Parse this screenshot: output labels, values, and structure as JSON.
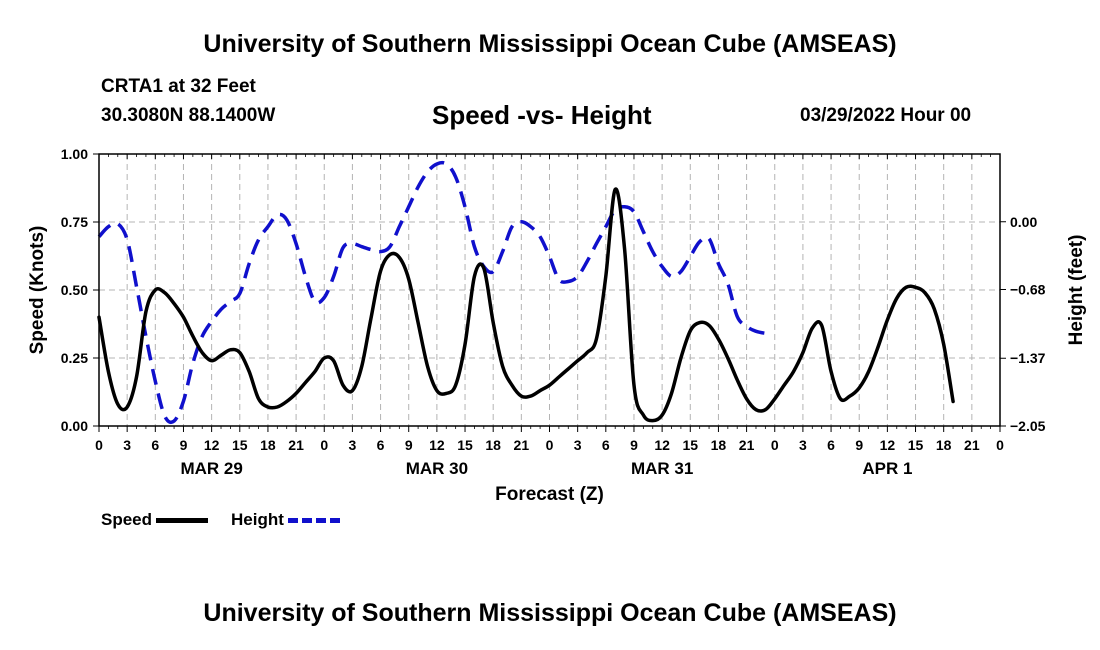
{
  "header": {
    "title": "University of Southern Mississippi Ocean Cube (AMSEAS)",
    "station": "CRTA1 at 32 Feet",
    "coords": "30.3080N  88.1400W",
    "chart_title": "Speed -vs- Height",
    "forecast_date": "03/29/2022 Hour 00"
  },
  "footer": {
    "title": "University of Southern Mississippi Ocean Cube (AMSEAS)"
  },
  "legend": {
    "speed_label": "Speed",
    "height_label": "Height",
    "speed_color": "#000000",
    "height_color": "#1010cc"
  },
  "chart_data": {
    "type": "line",
    "title": "Speed -vs- Height",
    "xlabel": "Forecast (Z)",
    "ylabel": "Speed (Knots)",
    "y2label": "Height (feet)",
    "xlim": [
      0,
      96
    ],
    "ylim": [
      0,
      1
    ],
    "y2lim": [
      -2.05,
      0.68
    ],
    "grid": true,
    "x_tick_hours": [
      0,
      3,
      6,
      9,
      12,
      15,
      18,
      21,
      24,
      27,
      30,
      33,
      36,
      39,
      42,
      45,
      48,
      51,
      54,
      57,
      60,
      63,
      66,
      69,
      72,
      75,
      78,
      81,
      84,
      87,
      90,
      93,
      96
    ],
    "x_tick_labels": [
      "0",
      "3",
      "6",
      "9",
      "12",
      "15",
      "18",
      "21",
      "0",
      "3",
      "6",
      "9",
      "12",
      "15",
      "18",
      "21",
      "0",
      "3",
      "6",
      "9",
      "12",
      "15",
      "18",
      "21",
      "0",
      "3",
      "6",
      "9",
      "12",
      "15",
      "18",
      "21",
      "0"
    ],
    "date_labels": [
      {
        "hour": 12,
        "label": "MAR 29"
      },
      {
        "hour": 36,
        "label": "MAR 30"
      },
      {
        "hour": 60,
        "label": "MAR 31"
      },
      {
        "hour": 84,
        "label": "APR 1"
      }
    ],
    "y_ticks": [
      0,
      0.25,
      0.5,
      0.75,
      1
    ],
    "y_tick_labels": [
      "0.00",
      "0.25",
      "0.50",
      "0.75",
      "1.00"
    ],
    "y2_ticks": [
      -2.05,
      -1.37,
      -0.68,
      0
    ],
    "y2_tick_labels": [
      "−2.05",
      "−1.37",
      "−0.68",
      "0.00"
    ],
    "series": [
      {
        "name": "Speed",
        "axis": "left",
        "color": "#000000",
        "dash": "solid",
        "points": [
          [
            0,
            0.4
          ],
          [
            1,
            0.2
          ],
          [
            2,
            0.08
          ],
          [
            3,
            0.07
          ],
          [
            4,
            0.18
          ],
          [
            5,
            0.42
          ],
          [
            6,
            0.5
          ],
          [
            7,
            0.49
          ],
          [
            8,
            0.45
          ],
          [
            9,
            0.4
          ],
          [
            10,
            0.33
          ],
          [
            11,
            0.27
          ],
          [
            12,
            0.24
          ],
          [
            13,
            0.26
          ],
          [
            14,
            0.28
          ],
          [
            15,
            0.27
          ],
          [
            16,
            0.2
          ],
          [
            17,
            0.1
          ],
          [
            18,
            0.07
          ],
          [
            19,
            0.07
          ],
          [
            20,
            0.09
          ],
          [
            21,
            0.12
          ],
          [
            22,
            0.16
          ],
          [
            23,
            0.2
          ],
          [
            24,
            0.25
          ],
          [
            25,
            0.24
          ],
          [
            26,
            0.15
          ],
          [
            27,
            0.13
          ],
          [
            28,
            0.22
          ],
          [
            29,
            0.4
          ],
          [
            30,
            0.57
          ],
          [
            31,
            0.63
          ],
          [
            32,
            0.62
          ],
          [
            33,
            0.54
          ],
          [
            34,
            0.38
          ],
          [
            35,
            0.22
          ],
          [
            36,
            0.13
          ],
          [
            37,
            0.12
          ],
          [
            38,
            0.15
          ],
          [
            39,
            0.3
          ],
          [
            40,
            0.55
          ],
          [
            41,
            0.58
          ],
          [
            42,
            0.38
          ],
          [
            43,
            0.22
          ],
          [
            44,
            0.15
          ],
          [
            45,
            0.11
          ],
          [
            46,
            0.11
          ],
          [
            47,
            0.13
          ],
          [
            48,
            0.15
          ],
          [
            49,
            0.18
          ],
          [
            50,
            0.21
          ],
          [
            51,
            0.24
          ],
          [
            52,
            0.27
          ],
          [
            53,
            0.32
          ],
          [
            54,
            0.55
          ],
          [
            55,
            0.87
          ],
          [
            56,
            0.65
          ],
          [
            57,
            0.15
          ],
          [
            58,
            0.04
          ],
          [
            59,
            0.02
          ],
          [
            60,
            0.04
          ],
          [
            61,
            0.12
          ],
          [
            62,
            0.25
          ],
          [
            63,
            0.35
          ],
          [
            64,
            0.38
          ],
          [
            65,
            0.37
          ],
          [
            66,
            0.32
          ],
          [
            67,
            0.25
          ],
          [
            68,
            0.17
          ],
          [
            69,
            0.1
          ],
          [
            70,
            0.06
          ],
          [
            71,
            0.06
          ],
          [
            72,
            0.1
          ],
          [
            73,
            0.15
          ],
          [
            74,
            0.2
          ],
          [
            75,
            0.27
          ],
          [
            76,
            0.36
          ],
          [
            77,
            0.37
          ],
          [
            78,
            0.2
          ],
          [
            79,
            0.1
          ],
          [
            80,
            0.11
          ],
          [
            81,
            0.14
          ],
          [
            82,
            0.2
          ],
          [
            83,
            0.29
          ],
          [
            84,
            0.39
          ],
          [
            85,
            0.47
          ],
          [
            86,
            0.51
          ],
          [
            87,
            0.51
          ],
          [
            88,
            0.49
          ],
          [
            89,
            0.43
          ],
          [
            90,
            0.3
          ],
          [
            91,
            0.09
          ]
        ]
      },
      {
        "name": "Height",
        "axis": "right",
        "color": "#1010cc",
        "dash": "dashed",
        "points": [
          [
            0,
            -0.15
          ],
          [
            1,
            -0.05
          ],
          [
            2,
            -0.02
          ],
          [
            3,
            -0.18
          ],
          [
            4,
            -0.65
          ],
          [
            5,
            -1.15
          ],
          [
            6,
            -1.6
          ],
          [
            7,
            -1.95
          ],
          [
            8,
            -2.0
          ],
          [
            9,
            -1.8
          ],
          [
            10,
            -1.42
          ],
          [
            11,
            -1.15
          ],
          [
            12,
            -1.0
          ],
          [
            13,
            -0.88
          ],
          [
            14,
            -0.8
          ],
          [
            15,
            -0.72
          ],
          [
            16,
            -0.42
          ],
          [
            17,
            -0.18
          ],
          [
            18,
            -0.05
          ],
          [
            19,
            0.07
          ],
          [
            20,
            0.02
          ],
          [
            21,
            -0.22
          ],
          [
            22,
            -0.55
          ],
          [
            23,
            -0.8
          ],
          [
            24,
            -0.76
          ],
          [
            25,
            -0.55
          ],
          [
            26,
            -0.26
          ],
          [
            27,
            -0.22
          ],
          [
            28,
            -0.25
          ],
          [
            29,
            -0.28
          ],
          [
            30,
            -0.3
          ],
          [
            31,
            -0.25
          ],
          [
            32,
            -0.05
          ],
          [
            33,
            0.15
          ],
          [
            34,
            0.35
          ],
          [
            35,
            0.5
          ],
          [
            36,
            0.58
          ],
          [
            37,
            0.58
          ],
          [
            38,
            0.45
          ],
          [
            39,
            0.15
          ],
          [
            40,
            -0.25
          ],
          [
            41,
            -0.45
          ],
          [
            42,
            -0.5
          ],
          [
            43,
            -0.3
          ],
          [
            44,
            -0.05
          ],
          [
            45,
            0.0
          ],
          [
            46,
            -0.05
          ],
          [
            47,
            -0.15
          ],
          [
            48,
            -0.35
          ],
          [
            49,
            -0.58
          ],
          [
            50,
            -0.6
          ],
          [
            51,
            -0.55
          ],
          [
            52,
            -0.4
          ],
          [
            53,
            -0.22
          ],
          [
            54,
            -0.05
          ],
          [
            55,
            0.12
          ],
          [
            56,
            0.15
          ],
          [
            57,
            0.1
          ],
          [
            58,
            -0.1
          ],
          [
            59,
            -0.3
          ],
          [
            60,
            -0.45
          ],
          [
            61,
            -0.55
          ],
          [
            62,
            -0.5
          ],
          [
            63,
            -0.35
          ],
          [
            64,
            -0.2
          ],
          [
            65,
            -0.17
          ],
          [
            66,
            -0.42
          ],
          [
            67,
            -0.62
          ],
          [
            68,
            -0.95
          ],
          [
            69,
            -1.05
          ],
          [
            70,
            -1.1
          ],
          [
            71,
            -1.12
          ]
        ]
      }
    ]
  }
}
